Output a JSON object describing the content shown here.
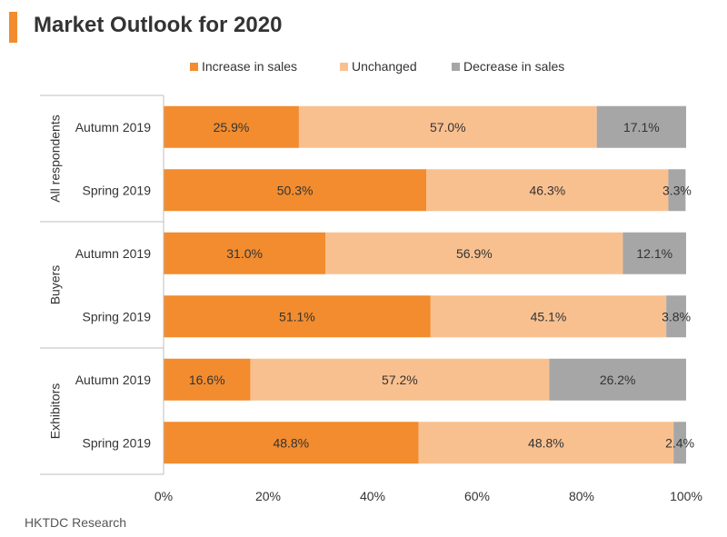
{
  "header": {
    "title": "Market Outlook for 2020"
  },
  "colors": {
    "accent": "#f28c2e",
    "increase": "#f28c2e",
    "unchanged": "#f9c08f",
    "decrease": "#a6a6a6",
    "axis": "#bfbfbf"
  },
  "source": "HKTDC Research",
  "chart_data": {
    "type": "bar",
    "orientation": "horizontal",
    "stacked": true,
    "title": "Market Outlook for 2020",
    "legend_position": "top",
    "groups": [
      {
        "name": "All respondents",
        "categories": [
          "Autumn 2019",
          "Spring 2019"
        ]
      },
      {
        "name": "Buyers",
        "categories": [
          "Autumn 2019",
          "Spring 2019"
        ]
      },
      {
        "name": "Exhibitors",
        "categories": [
          "Autumn 2019",
          "Spring 2019"
        ]
      }
    ],
    "series": [
      {
        "name": "Increase in sales",
        "color": "#f28c2e",
        "values": [
          25.9,
          50.3,
          31.0,
          51.1,
          16.6,
          48.8
        ],
        "labels": [
          "25.9%",
          "50.3%",
          "31.0%",
          "51.1%",
          "16.6%",
          "48.8%"
        ]
      },
      {
        "name": "Unchanged",
        "color": "#f9c08f",
        "values": [
          57.0,
          46.3,
          56.9,
          45.1,
          57.2,
          48.8
        ],
        "labels": [
          "57.0%",
          "46.3%",
          "56.9%",
          "45.1%",
          "57.2%",
          "48.8%"
        ]
      },
      {
        "name": "Decrease in sales",
        "color": "#a6a6a6",
        "values": [
          17.1,
          3.3,
          12.1,
          3.8,
          26.2,
          2.4
        ],
        "labels": [
          "17.1%",
          "3.3%",
          "12.1%",
          "3.8%",
          "26.2%",
          "2.4%"
        ]
      }
    ],
    "xlim": [
      0,
      100
    ],
    "xticks": [
      0,
      20,
      40,
      60,
      80,
      100
    ],
    "xtick_labels": [
      "0%",
      "20%",
      "40%",
      "60%",
      "80%",
      "100%"
    ],
    "grid": false
  }
}
